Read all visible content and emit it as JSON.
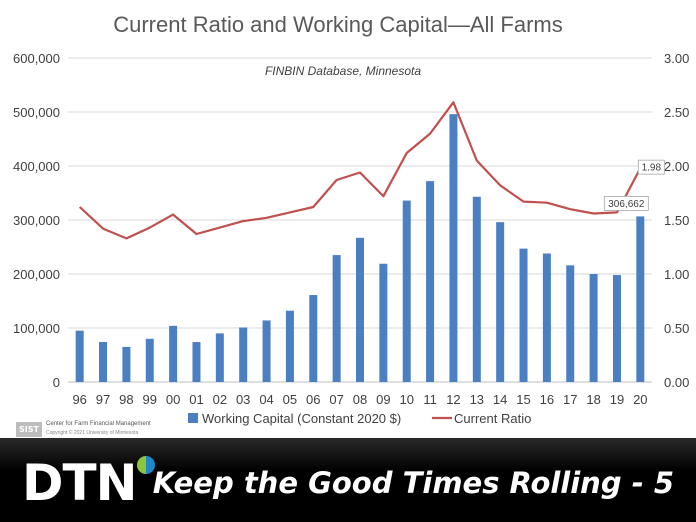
{
  "chart_data": {
    "type": "bar+line",
    "title": "Current Ratio and Working Capital—All Farms",
    "subtitle": "FINBIN Database, Minnesota",
    "categories": [
      "96",
      "97",
      "98",
      "99",
      "00",
      "01",
      "02",
      "03",
      "04",
      "05",
      "06",
      "07",
      "08",
      "09",
      "10",
      "11",
      "12",
      "13",
      "14",
      "15",
      "16",
      "17",
      "18",
      "19",
      "20"
    ],
    "series": [
      {
        "name": "Working Capital (Constant 2020 $)",
        "kind": "bar",
        "axis": "left",
        "color": "#4a7fc1",
        "values": [
          95000,
          74000,
          65000,
          80000,
          104000,
          74000,
          90000,
          101000,
          114000,
          132000,
          161000,
          235000,
          267000,
          219000,
          336000,
          372000,
          496000,
          343000,
          296000,
          247000,
          238000,
          216000,
          200000,
          198000,
          306662
        ]
      },
      {
        "name": "Current Ratio",
        "kind": "line",
        "axis": "right",
        "color": "#c0504d",
        "values": [
          1.62,
          1.42,
          1.33,
          1.43,
          1.55,
          1.37,
          1.43,
          1.49,
          1.52,
          1.57,
          1.62,
          1.87,
          1.94,
          1.72,
          2.12,
          2.3,
          2.59,
          2.05,
          1.82,
          1.67,
          1.66,
          1.6,
          1.56,
          1.57,
          1.98
        ]
      }
    ],
    "y_left": {
      "min": 0,
      "max": 600000,
      "ticks": [
        "0",
        "100,000",
        "200,000",
        "300,000",
        "400,000",
        "500,000",
        "600,000"
      ]
    },
    "y_right": {
      "min": 0,
      "max": 3,
      "ticks": [
        "0.00",
        "0.50",
        "1.00",
        "1.50",
        "2.00",
        "2.50",
        "3.00"
      ]
    },
    "data_labels": [
      {
        "series": 0,
        "index": 24,
        "text": "306,662"
      },
      {
        "series": 1,
        "index": 24,
        "text": "1.98"
      }
    ],
    "legend_position": "bottom",
    "grid": true
  },
  "footer": {
    "logo": "DTN",
    "title": "Keep the Good Times Rolling - 5",
    "org_mark": "SIST",
    "org_name": "Center for Farm Financial Management",
    "org_copy": "Copyright © 2021 University of Minnesota"
  }
}
